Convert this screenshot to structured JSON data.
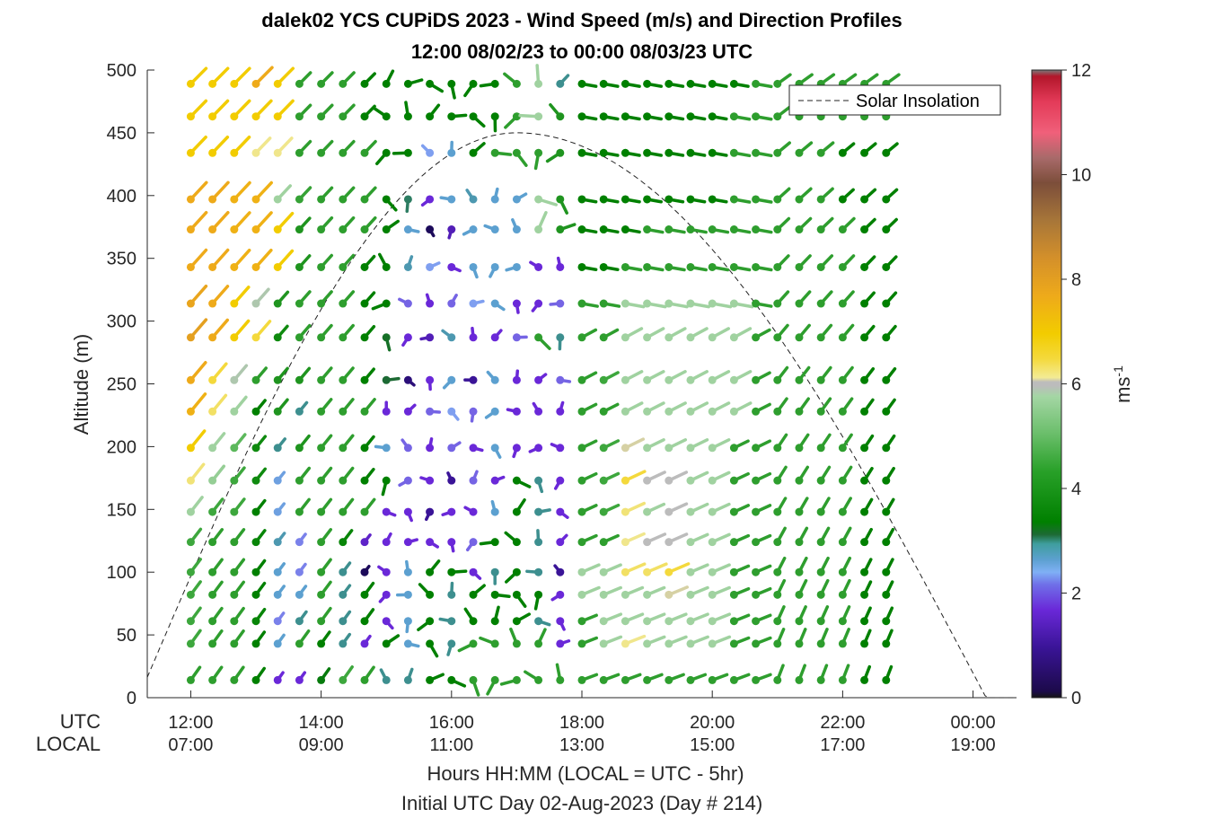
{
  "chart_data": {
    "type": "scatter",
    "title": "dalek02 YCS CUPiDS 2023 - Wind Speed (m/s) and Direction Profiles",
    "subtitle": "12:00 08/02/23 to 00:00 08/03/23  UTC",
    "ylabel": "Altitude (m)",
    "xlabel": "Hours HH:MM  (LOCAL = UTC - 5hr)",
    "xlabel2": "Initial UTC Day 02-Aug-2023 (Day # 214)",
    "row_label_utc": "UTC",
    "row_label_local": "LOCAL",
    "xlim_hours": [
      11.333,
      24.667
    ],
    "ylim": [
      0,
      500
    ],
    "yticks": [
      "0",
      "50",
      "100",
      "150",
      "200",
      "250",
      "300",
      "350",
      "400",
      "450",
      "500"
    ],
    "xticks_utc": [
      "12:00",
      "14:00",
      "16:00",
      "18:00",
      "20:00",
      "22:00",
      "00:00"
    ],
    "xticks_local": [
      "07:00",
      "09:00",
      "11:00",
      "13:00",
      "15:00",
      "17:00",
      "19:00"
    ],
    "colorbar": {
      "label": "ms",
      "label_exponent": "-1",
      "range": [
        0,
        12
      ],
      "ticks": [
        "0",
        "2",
        "4",
        "6",
        "8",
        "10",
        "12"
      ]
    },
    "legend": {
      "entry": "Solar Insolation",
      "placement": "top-right",
      "style": "dashed"
    },
    "solar_insolation": {
      "rise_hour": 11.2,
      "peak_hour": 17.0,
      "peak_altitude": 450,
      "set_hour": 24.2
    },
    "altitudes": [
      14,
      43,
      61,
      82,
      100,
      124,
      148,
      173,
      199,
      228,
      253,
      287,
      314,
      343,
      373,
      397,
      434,
      463,
      489
    ],
    "series": [
      {
        "time": "12:00",
        "speeds": [
          4.4,
          4.6,
          4.6,
          4.6,
          4.6,
          4.6,
          5.6,
          6.5,
          7.0,
          7.4,
          7.5,
          7.7,
          7.6,
          7.5,
          7.5,
          7.5,
          7.0,
          7.0,
          7.0
        ]
      },
      {
        "time": "12:20",
        "speeds": [
          4.4,
          4.4,
          4.4,
          4.4,
          4.4,
          4.4,
          4.6,
          5.5,
          5.6,
          6.6,
          6.8,
          7.5,
          7.5,
          7.5,
          7.5,
          7.5,
          7.0,
          7.0,
          7.0
        ]
      },
      {
        "time": "12:40",
        "speeds": [
          4.4,
          4.4,
          4.4,
          4.4,
          4.4,
          4.4,
          4.6,
          4.6,
          5.0,
          5.6,
          5.8,
          7.0,
          7.0,
          7.4,
          7.4,
          7.4,
          7.0,
          7.0,
          7.0
        ]
      },
      {
        "time": "13:00",
        "speeds": [
          3.8,
          3.8,
          3.9,
          3.8,
          3.8,
          3.9,
          3.8,
          4.0,
          4.0,
          3.8,
          4.4,
          6.8,
          5.8,
          7.4,
          7.4,
          7.4,
          6.4,
          7.0,
          7.5
        ]
      },
      {
        "time": "13:20",
        "speeds": [
          1.6,
          2.2,
          1.9,
          2.2,
          2.2,
          2.4,
          2.1,
          2.1,
          2.6,
          4.2,
          4.2,
          4.0,
          4.2,
          7.0,
          7.0,
          5.6,
          6.4,
          7.0,
          7.0
        ]
      },
      {
        "time": "13:40",
        "speeds": [
          1.6,
          4.4,
          2.6,
          2.2,
          1.9,
          1.9,
          4.4,
          4.4,
          4.2,
          2.6,
          4.2,
          4.4,
          4.4,
          4.2,
          4.2,
          4.5,
          4.4,
          4.4,
          4.4
        ]
      },
      {
        "time": "14:00",
        "speeds": [
          3.6,
          3.8,
          4.4,
          4.4,
          4.4,
          4.4,
          4.4,
          4.4,
          4.4,
          4.4,
          4.4,
          4.4,
          4.4,
          4.4,
          4.4,
          4.4,
          4.4,
          4.4,
          4.4
        ]
      },
      {
        "time": "14:20",
        "speeds": [
          4.6,
          2.6,
          2.6,
          2.6,
          2.6,
          3.9,
          4.4,
          4.4,
          4.4,
          4.4,
          4.4,
          4.4,
          4.4,
          4.4,
          4.4,
          4.4,
          4.4,
          4.4,
          4.4
        ]
      },
      {
        "time": "14:40",
        "speeds": [
          4.4,
          1.6,
          3.8,
          3.8,
          0.8,
          1.5,
          4.4,
          3.8,
          3.8,
          4.4,
          3.8,
          3.8,
          3.8,
          3.8,
          4.4,
          4.4,
          4.4,
          3.8,
          3.8
        ]
      },
      {
        "time": "15:00",
        "speeds": [
          2.6,
          3.8,
          1.6,
          1.6,
          1.6,
          1.6,
          1.6,
          3.8,
          2.2,
          1.6,
          3.0,
          3.2,
          3.8,
          3.8,
          3.8,
          3.8,
          3.8,
          3.8,
          3.8
        ]
      },
      {
        "time": "15:20",
        "speeds": [
          2.6,
          2.2,
          2.2,
          2.2,
          2.2,
          1.6,
          1.6,
          1.8,
          1.8,
          1.6,
          1.0,
          1.6,
          1.8,
          2.4,
          2.2,
          2.8,
          3.8,
          3.8,
          3.8
        ]
      },
      {
        "time": "15:40",
        "speeds": [
          3.8,
          3.8,
          3.8,
          3.8,
          3.8,
          1.6,
          1.2,
          1.6,
          1.6,
          1.8,
          1.6,
          1.4,
          1.6,
          2.0,
          0.8,
          1.6,
          2.0,
          3.8,
          3.8
        ]
      },
      {
        "time": "16:00",
        "speeds": [
          3.8,
          2.6,
          2.6,
          2.6,
          3.8,
          1.6,
          1.6,
          1.2,
          1.8,
          2.0,
          2.2,
          2.4,
          1.8,
          1.6,
          1.4,
          2.2,
          2.2,
          3.8,
          3.8
        ]
      },
      {
        "time": "16:20",
        "speeds": [
          4.4,
          4.4,
          3.8,
          3.8,
          1.6,
          1.8,
          1.6,
          1.8,
          1.6,
          1.8,
          1.2,
          1.6,
          2.0,
          2.2,
          2.2,
          2.4,
          3.8,
          3.8,
          3.8
        ]
      },
      {
        "time": "16:40",
        "speeds": [
          4.4,
          4.4,
          3.8,
          3.8,
          2.6,
          3.8,
          2.2,
          1.6,
          2.2,
          2.2,
          2.2,
          1.6,
          2.2,
          2.2,
          2.2,
          2.2,
          4.4,
          3.8,
          3.8
        ]
      },
      {
        "time": "17:00",
        "speeds": [
          4.4,
          4.4,
          3.8,
          3.8,
          3.8,
          3.8,
          3.8,
          3.8,
          1.6,
          1.6,
          1.6,
          1.8,
          1.6,
          2.2,
          2.2,
          2.2,
          4.4,
          4.4,
          4.4
        ]
      },
      {
        "time": "17:20",
        "speeds": [
          4.4,
          4.4,
          2.6,
          3.8,
          2.6,
          2.6,
          2.6,
          2.6,
          1.6,
          1.6,
          1.6,
          4.4,
          1.6,
          1.6,
          5.6,
          5.6,
          4.4,
          5.6,
          5.6
        ]
      },
      {
        "time": "17:40",
        "speeds": [
          4.4,
          1.6,
          1.6,
          1.6,
          1.2,
          1.6,
          1.6,
          1.6,
          1.6,
          1.6,
          1.8,
          2.6,
          1.8,
          1.6,
          4.2,
          4.2,
          4.2,
          4.2,
          2.6
        ]
      },
      {
        "time": "18:00",
        "speeds": [
          4.4,
          4.4,
          4.4,
          5.6,
          5.6,
          4.4,
          4.4,
          4.4,
          4.4,
          4.4,
          4.4,
          4.4,
          4.4,
          3.8,
          3.8,
          3.8,
          3.8,
          3.8,
          3.8
        ]
      },
      {
        "time": "18:20",
        "speeds": [
          4.4,
          5.6,
          5.6,
          5.6,
          5.6,
          4.4,
          4.6,
          4.6,
          4.6,
          4.4,
          4.6,
          4.4,
          4.4,
          3.8,
          3.8,
          3.8,
          3.8,
          3.8,
          3.8
        ]
      },
      {
        "time": "18:40",
        "speeds": [
          4.4,
          6.4,
          5.6,
          5.6,
          6.6,
          6.4,
          6.5,
          6.8,
          6.2,
          5.6,
          5.6,
          5.6,
          5.6,
          4.4,
          3.8,
          3.8,
          3.8,
          3.8,
          3.8
        ]
      },
      {
        "time": "19:00",
        "speeds": [
          4.4,
          5.6,
          5.6,
          5.6,
          6.6,
          6.0,
          5.6,
          6.0,
          5.6,
          5.6,
          5.6,
          5.6,
          5.6,
          4.4,
          4.4,
          3.8,
          3.8,
          3.8,
          3.8
        ]
      },
      {
        "time": "19:20",
        "speeds": [
          4.4,
          5.6,
          5.6,
          6.2,
          6.8,
          6.0,
          6.0,
          6.0,
          5.6,
          5.6,
          5.6,
          5.6,
          5.6,
          4.4,
          4.4,
          3.8,
          3.8,
          3.8,
          3.8
        ]
      },
      {
        "time": "19:40",
        "speeds": [
          4.4,
          5.6,
          5.6,
          5.6,
          5.6,
          5.6,
          5.6,
          5.6,
          5.6,
          5.6,
          5.6,
          5.6,
          5.6,
          4.4,
          4.4,
          3.8,
          3.8,
          3.8,
          3.8
        ]
      },
      {
        "time": "20:00",
        "speeds": [
          4.4,
          5.6,
          5.6,
          5.6,
          5.6,
          5.6,
          5.6,
          5.6,
          5.6,
          5.6,
          5.6,
          5.6,
          5.6,
          4.4,
          4.4,
          3.8,
          3.8,
          3.8,
          3.8
        ]
      },
      {
        "time": "20:20",
        "speeds": [
          4.4,
          4.4,
          4.4,
          4.4,
          4.4,
          4.4,
          4.4,
          4.4,
          4.4,
          5.6,
          5.6,
          5.6,
          5.6,
          4.4,
          4.4,
          4.4,
          4.4,
          4.4,
          3.8
        ]
      },
      {
        "time": "20:40",
        "speeds": [
          4.4,
          4.4,
          4.4,
          4.4,
          4.4,
          4.4,
          4.4,
          4.4,
          4.4,
          4.4,
          4.4,
          4.4,
          4.4,
          4.4,
          4.4,
          4.4,
          4.4,
          4.4,
          4.4
        ]
      },
      {
        "time": "21:00",
        "speeds": [
          4.4,
          4.4,
          4.4,
          4.4,
          4.4,
          4.4,
          4.4,
          4.4,
          4.4,
          4.4,
          4.4,
          4.4,
          4.4,
          4.4,
          4.4,
          4.4,
          4.4,
          4.4,
          4.4
        ]
      },
      {
        "time": "21:20",
        "speeds": [
          4.4,
          4.4,
          4.4,
          4.4,
          4.4,
          4.4,
          4.4,
          4.4,
          4.4,
          4.4,
          4.4,
          4.4,
          4.4,
          4.4,
          4.4,
          4.4,
          4.4,
          4.4,
          4.4
        ]
      },
      {
        "time": "21:40",
        "speeds": [
          4.4,
          4.4,
          4.4,
          4.4,
          4.4,
          4.4,
          4.4,
          4.4,
          4.4,
          4.4,
          4.4,
          4.4,
          4.4,
          4.4,
          4.4,
          4.4,
          4.4,
          4.4,
          4.4
        ]
      },
      {
        "time": "22:00",
        "speeds": [
          4.4,
          4.4,
          4.4,
          4.4,
          4.4,
          4.4,
          4.4,
          4.4,
          4.4,
          4.4,
          4.4,
          4.4,
          4.4,
          4.4,
          4.4,
          3.8,
          3.8,
          4.4,
          4.4
        ]
      },
      {
        "time": "22:20",
        "speeds": [
          3.8,
          3.8,
          3.8,
          3.8,
          3.8,
          3.8,
          3.8,
          3.8,
          3.8,
          3.8,
          3.8,
          3.8,
          3.8,
          3.8,
          3.8,
          3.8,
          3.8,
          4.4,
          4.4
        ]
      },
      {
        "time": "22:40",
        "speeds": [
          3.8,
          3.8,
          3.8,
          3.8,
          3.8,
          3.8,
          3.8,
          3.8,
          3.8,
          3.8,
          3.8,
          3.8,
          3.8,
          3.8,
          3.8,
          3.8,
          3.8,
          4.4,
          4.4
        ]
      }
    ]
  }
}
